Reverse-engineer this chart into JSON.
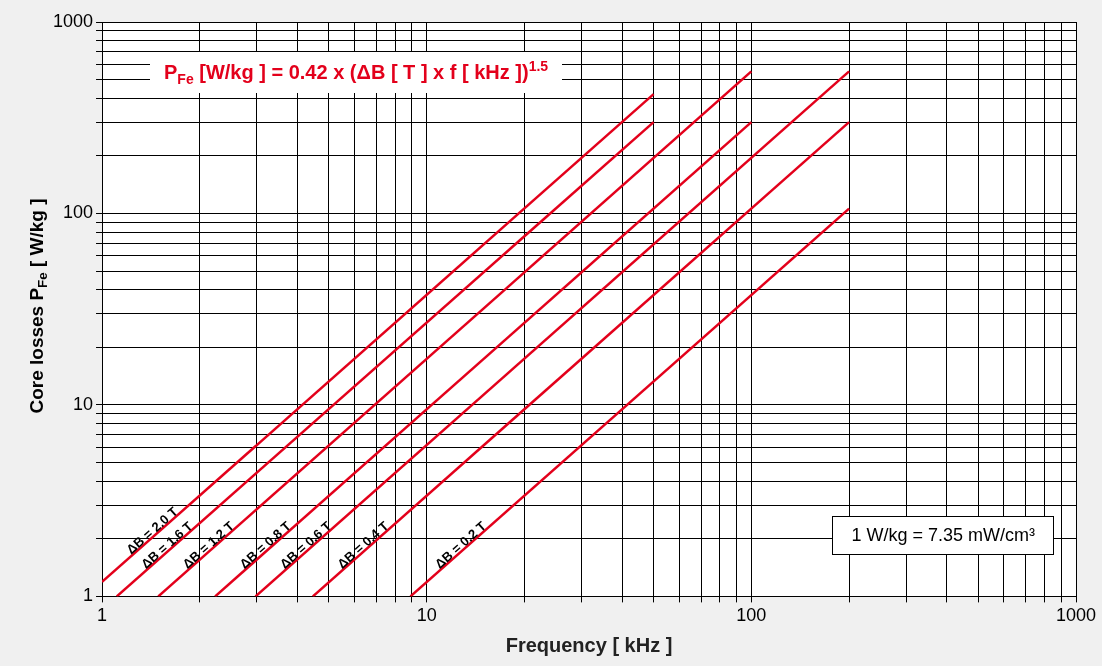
{
  "chart_data": {
    "type": "line",
    "title": "P$_{Fe}$ [W/kg ] = 0.42 x (ΔB [ T ] x f [ kHz ])$^{1.5}$",
    "xlabel": "Frequency [ kHz ]",
    "ylabel": "Core losses P$_{Fe}$ [ W/kg ]",
    "annotations": [
      "1 W/kg = 7.35 mW/cm³"
    ],
    "log": "xy",
    "grid": true,
    "legend": false,
    "marker": "none",
    "line_style": "solid",
    "xlim": [
      1,
      1000
    ],
    "ylim": [
      1,
      1000
    ],
    "xticks": [
      1,
      {
        "value": 2,
        "label": null
      },
      {
        "value": 3,
        "label": null
      },
      {
        "value": 4,
        "label": null
      },
      {
        "value": 5,
        "label": null
      },
      {
        "value": 6,
        "label": null
      },
      {
        "value": 7,
        "label": null
      },
      {
        "value": 8,
        "label": null
      },
      {
        "value": 9,
        "label": null
      },
      10,
      {
        "value": 20,
        "label": null
      },
      {
        "value": 30,
        "label": null
      },
      {
        "value": 40,
        "label": null
      },
      {
        "value": 50,
        "label": null
      },
      {
        "value": 60,
        "label": null
      },
      {
        "value": 70,
        "label": null
      },
      {
        "value": 80,
        "label": null
      },
      {
        "value": 90,
        "label": null
      },
      100,
      {
        "value": 200,
        "label": null
      },
      {
        "value": 300,
        "label": null
      },
      {
        "value": 400,
        "label": null
      },
      {
        "value": 500,
        "label": null
      },
      {
        "value": 600,
        "label": null
      },
      {
        "value": 700,
        "label": null
      },
      {
        "value": 800,
        "label": null
      },
      {
        "value": 900,
        "label": null
      },
      1000
    ],
    "yticks": [
      1,
      {
        "value": 2,
        "label": null
      },
      {
        "value": 3,
        "label": null
      },
      {
        "value": 4,
        "label": null
      },
      {
        "value": 5,
        "label": null
      },
      {
        "value": 6,
        "label": null
      },
      {
        "value": 7,
        "label": null
      },
      {
        "value": 8,
        "label": null
      },
      {
        "value": 9,
        "label": null
      },
      10,
      {
        "value": 20,
        "label": null
      },
      {
        "value": 30,
        "label": null
      },
      {
        "value": 40,
        "label": null
      },
      {
        "value": 50,
        "label": null
      },
      {
        "value": 60,
        "label": null
      },
      {
        "value": 70,
        "label": null
      },
      {
        "value": 80,
        "label": null
      },
      {
        "value": 90,
        "label": null
      },
      100,
      {
        "value": 200,
        "label": null
      },
      {
        "value": 300,
        "label": null
      },
      {
        "value": 400,
        "label": null
      },
      {
        "value": 500,
        "label": null
      },
      {
        "value": 600,
        "label": null
      },
      {
        "value": 700,
        "label": null
      },
      {
        "value": 800,
        "label": null
      },
      {
        "value": 900,
        "label": null
      },
      1000
    ],
    "series": [
      {
        "name": "ΔB = 2.0 T",
        "color": "#e3001b",
        "x": [
          1,
          50
        ],
        "values": [
          1.19,
          420
        ]
      },
      {
        "name": "ΔB = 1.6 T",
        "color": "#e3001b",
        "x": [
          1.11,
          50
        ],
        "values": [
          1,
          300
        ]
      },
      {
        "name": "ΔB = 1.2 T",
        "color": "#e3001b",
        "x": [
          1.49,
          100
        ],
        "values": [
          1,
          552
        ]
      },
      {
        "name": "ΔB = 0.8 T",
        "color": "#e3001b",
        "x": [
          2.23,
          100
        ],
        "values": [
          1,
          300
        ]
      },
      {
        "name": "ΔB = 0.6 T",
        "color": "#e3001b",
        "x": [
          2.97,
          200
        ],
        "values": [
          1,
          552
        ]
      },
      {
        "name": "ΔB = 0.4 T",
        "color": "#e3001b",
        "x": [
          4.46,
          200
        ],
        "values": [
          1,
          300
        ]
      },
      {
        "name": "ΔB = 0.2 T",
        "color": "#e3001b",
        "x": [
          8.91,
          200
        ],
        "values": [
          1,
          106
        ]
      }
    ]
  }
}
